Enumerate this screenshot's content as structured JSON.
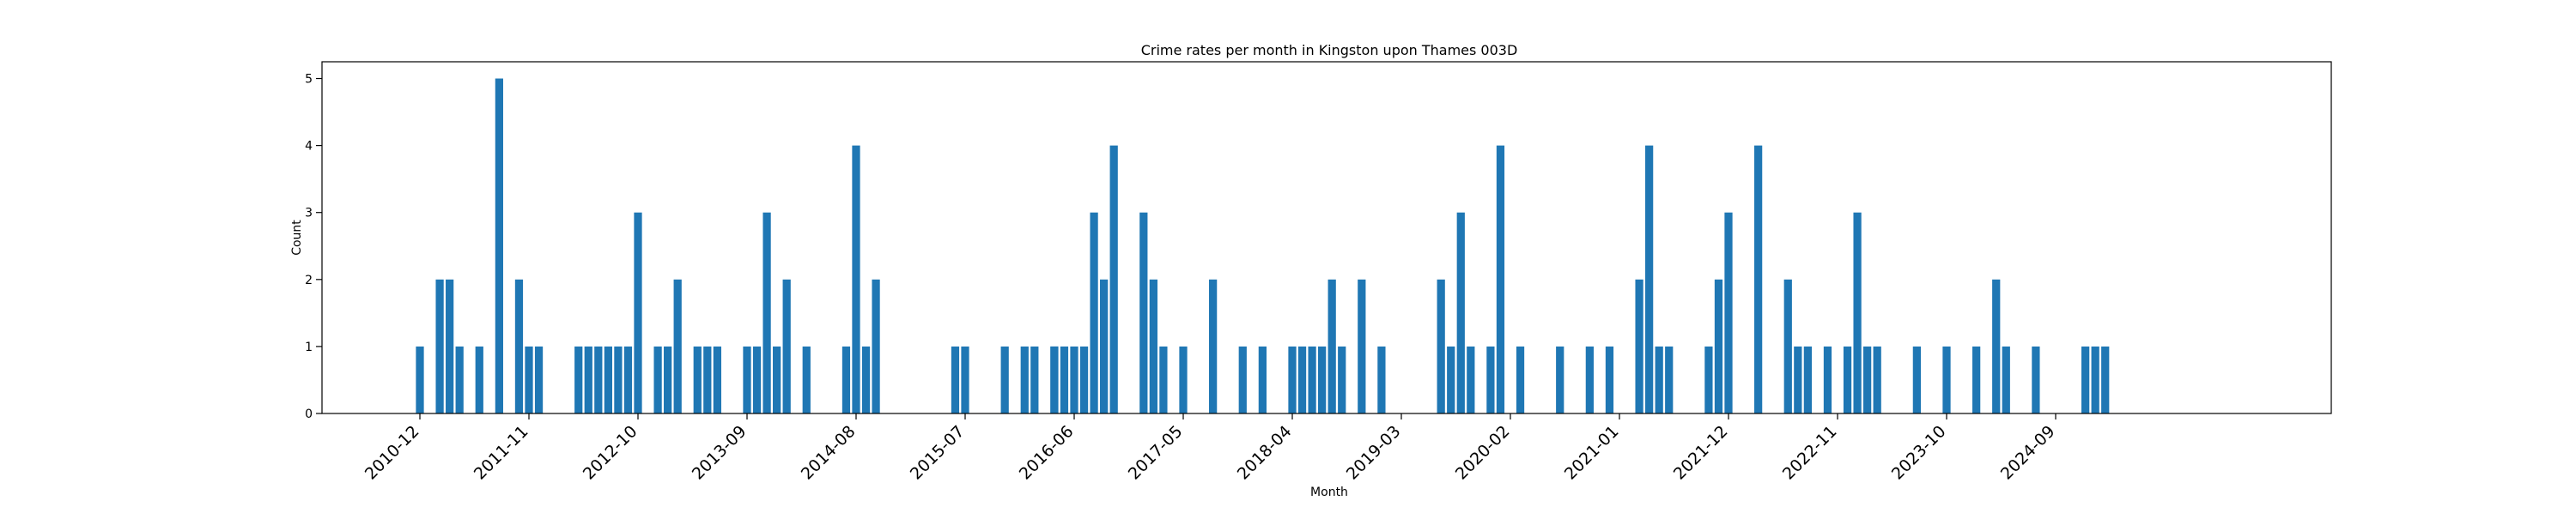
{
  "chart_data": {
    "type": "bar",
    "title": "Crime rates per month in Kingston upon Thames 003D",
    "xlabel": "Month",
    "ylabel": "Count",
    "ylim": [
      0,
      5.25
    ],
    "yticks": [
      0,
      1,
      2,
      3,
      4,
      5
    ],
    "xticks": [
      "2010-12",
      "2011-11",
      "2012-10",
      "2013-09",
      "2014-08",
      "2015-07",
      "2016-06",
      "2017-05",
      "2018-04",
      "2019-03",
      "2020-02",
      "2021-01",
      "2021-12",
      "2022-11",
      "2023-10",
      "2024-09"
    ],
    "grid": false,
    "bar_color": "#1f77b4",
    "x": [
      "2010-12",
      "2011-02",
      "2011-03",
      "2011-04",
      "2011-06",
      "2011-08",
      "2011-10",
      "2011-11",
      "2011-12",
      "2012-04",
      "2012-05",
      "2012-06",
      "2012-07",
      "2012-08",
      "2012-09",
      "2012-10",
      "2012-12",
      "2013-01",
      "2013-02",
      "2013-04",
      "2013-05",
      "2013-06",
      "2013-09",
      "2013-10",
      "2013-11",
      "2013-12",
      "2014-01",
      "2014-03",
      "2014-07",
      "2014-08",
      "2014-09",
      "2014-10",
      "2015-06",
      "2015-07",
      "2015-11",
      "2016-01",
      "2016-02",
      "2016-04",
      "2016-05",
      "2016-06",
      "2016-07",
      "2016-08",
      "2016-09",
      "2016-04",
      "2016-10",
      "2017-01",
      "2017-02",
      "2017-03",
      "2017-05",
      "2017-08",
      "2017-11",
      "2018-01",
      "2018-04",
      "2018-05",
      "2018-06",
      "2018-07",
      "2018-08",
      "2018-09",
      "2018-11",
      "2019-01",
      "2019-07",
      "2019-08",
      "2019-09",
      "2019-10",
      "2019-12",
      "2020-01",
      "2020-03",
      "2020-07",
      "2020-10",
      "2020-12",
      "2021-03",
      "2021-04",
      "2021-05",
      "2021-06",
      "2021-10",
      "2021-11",
      "2021-12",
      "2022-03",
      "2022-06",
      "2022-07",
      "2022-08",
      "2022-10",
      "2022-12",
      "2023-01",
      "2023-02",
      "2023-03",
      "2023-07",
      "2023-10",
      "2024-01",
      "2024-03",
      "2024-04",
      "2024-07",
      "2024-12",
      "2025-01",
      "2025-02"
    ],
    "values": [
      1,
      2,
      2,
      1,
      1,
      5,
      2,
      1,
      1,
      1,
      1,
      1,
      1,
      1,
      1,
      3,
      1,
      1,
      2,
      1,
      1,
      1,
      1,
      1,
      3,
      1,
      2,
      1,
      1,
      4,
      1,
      2,
      1,
      1,
      1,
      1,
      1,
      1,
      1,
      1,
      1,
      3,
      2,
      1,
      4,
      3,
      2,
      1,
      1,
      2,
      1,
      1,
      1,
      1,
      1,
      1,
      2,
      1,
      2,
      1,
      2,
      1,
      3,
      1,
      1,
      4,
      1,
      1,
      1,
      1,
      2,
      4,
      1,
      1,
      1,
      2,
      3,
      4,
      2,
      1,
      1,
      1,
      1,
      3,
      1,
      1,
      1,
      1,
      1,
      2,
      1,
      1,
      1,
      1,
      1
    ]
  }
}
